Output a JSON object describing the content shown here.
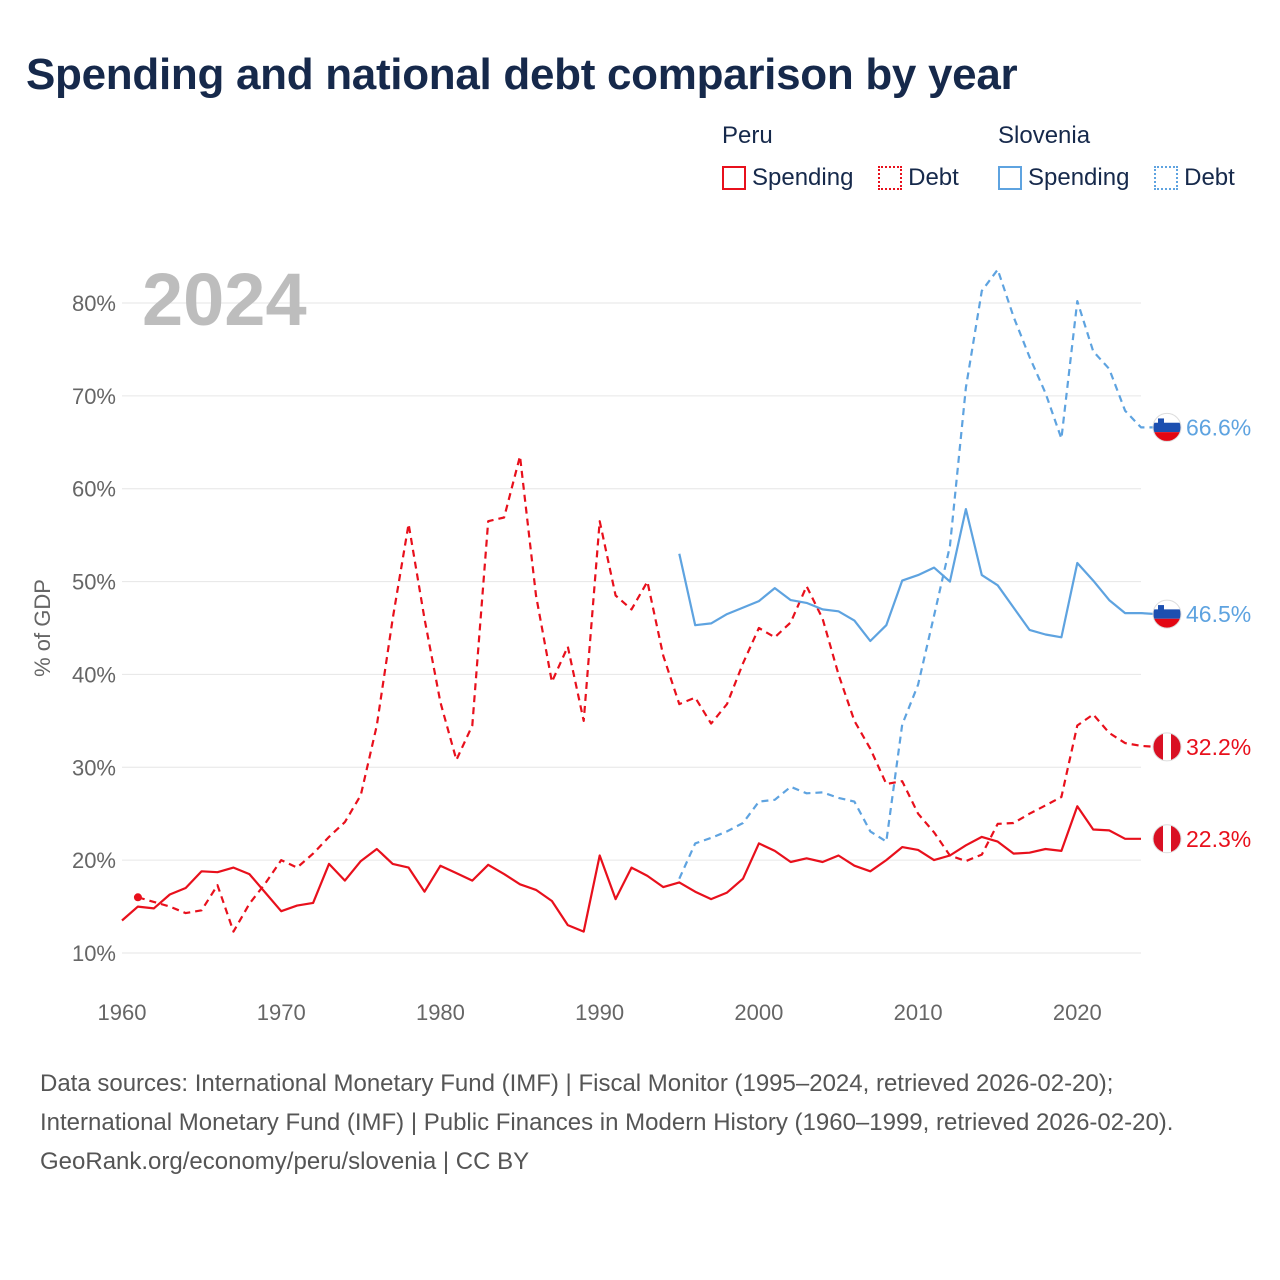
{
  "chart_data": {
    "type": "line",
    "title": "Spending and national debt comparison by year",
    "year_watermark": "2024",
    "ylabel": "% of GDP",
    "xlabel": "",
    "xlim": [
      1960,
      2024
    ],
    "ylim": [
      10,
      85
    ],
    "x_ticks": [
      1960,
      1970,
      1980,
      1990,
      2000,
      2010,
      2020
    ],
    "x_tick_labels": [
      "1960",
      "1970",
      "1980",
      "1990",
      "2000",
      "2010",
      "2020"
    ],
    "y_ticks": [
      10,
      20,
      30,
      40,
      50,
      60,
      70,
      80
    ],
    "y_tick_labels": [
      "10%",
      "20%",
      "30%",
      "40%",
      "50%",
      "60%",
      "70%",
      "80%"
    ],
    "legend": {
      "groups": [
        {
          "name": "Peru",
          "entries": [
            {
              "label": "Spending",
              "style": "solid",
              "color": "#e8101c"
            },
            {
              "label": "Debt",
              "style": "dotted",
              "color": "#e8101c"
            }
          ]
        },
        {
          "name": "Slovenia",
          "entries": [
            {
              "label": "Spending",
              "style": "solid",
              "color": "#5ea3e0"
            },
            {
              "label": "Debt",
              "style": "dotted",
              "color": "#5ea3e0"
            }
          ]
        }
      ]
    },
    "series": [
      {
        "name": "Peru Spending",
        "country": "Peru",
        "metric": "Spending",
        "color": "#e8101c",
        "dash": false,
        "start_year": 1960,
        "values": [
          13.5,
          15.0,
          14.8,
          16.3,
          17.0,
          18.8,
          18.7,
          19.2,
          18.5,
          16.5,
          14.5,
          15.1,
          15.4,
          19.6,
          17.8,
          19.9,
          21.2,
          19.6,
          19.2,
          16.6,
          19.4,
          18.6,
          17.8,
          19.5,
          18.5,
          17.4,
          16.8,
          15.6,
          13.0,
          12.3,
          20.5,
          15.8,
          19.2,
          18.3,
          17.1,
          17.6,
          16.6,
          15.8,
          16.5,
          18.0,
          21.8,
          21.0,
          19.8,
          20.2,
          19.8,
          20.5,
          19.4,
          18.8,
          20.0,
          21.4,
          21.1,
          20.0,
          20.5,
          21.6,
          22.5,
          22.0,
          20.7,
          20.8,
          21.2,
          21.0,
          25.8,
          23.3,
          23.2,
          22.3,
          22.3
        ],
        "end_label": "22.3%"
      },
      {
        "name": "Peru Debt",
        "country": "Peru",
        "metric": "Debt",
        "color": "#e8101c",
        "dash": true,
        "start_year": 1961,
        "values": [
          16.0,
          15.5,
          15.0,
          14.3,
          14.6,
          17.3,
          12.3,
          15.3,
          17.5,
          20.0,
          19.2,
          20.7,
          22.5,
          24.1,
          27.0,
          34.5,
          46.0,
          56.2,
          46.0,
          37.0,
          30.8,
          34.5,
          56.5,
          56.9,
          63.5,
          48.5,
          39.2,
          43.0,
          35.0,
          56.5,
          48.5,
          47.0,
          50.0,
          42.0,
          36.8,
          37.5,
          34.7,
          36.8,
          41.2,
          45.0,
          44.0,
          45.6,
          49.5,
          46.0,
          40.0,
          35.0,
          32.0,
          28.2,
          28.5,
          25.0,
          23.0,
          20.5,
          19.9,
          20.6,
          23.9,
          24.0,
          25.0,
          25.9,
          26.8,
          34.5,
          35.7,
          33.7,
          32.6,
          32.3,
          32.2
        ],
        "end_label": "32.2%"
      },
      {
        "name": "Slovenia Spending",
        "country": "Slovenia",
        "metric": "Spending",
        "color": "#5ea3e0",
        "dash": false,
        "start_year": 1995,
        "values": [
          53.0,
          45.3,
          45.5,
          46.5,
          47.2,
          47.9,
          49.3,
          48.0,
          47.7,
          47.0,
          46.8,
          45.8,
          43.6,
          45.3,
          50.1,
          50.7,
          51.5,
          50.0,
          57.8,
          50.7,
          49.6,
          47.2,
          44.8,
          44.3,
          44.0,
          52.0,
          50.1,
          48.0,
          46.6,
          46.6,
          46.5
        ],
        "end_label": "46.5%"
      },
      {
        "name": "Slovenia Debt",
        "country": "Slovenia",
        "metric": "Debt",
        "color": "#5ea3e0",
        "dash": true,
        "start_year": 1995,
        "values": [
          18.0,
          21.8,
          22.4,
          23.1,
          24.0,
          26.3,
          26.5,
          27.9,
          27.2,
          27.3,
          26.7,
          26.3,
          23.1,
          22.0,
          34.6,
          38.9,
          46.3,
          53.8,
          70.9,
          81.3,
          83.6,
          78.5,
          74.2,
          70.3,
          65.4,
          80.2,
          74.8,
          72.9,
          68.4,
          66.6,
          66.6
        ],
        "end_label": "66.6%"
      }
    ],
    "end_labels": [
      {
        "country": "Slovenia",
        "metric": "Debt",
        "text": "66.6%",
        "color": "#5ea3e0",
        "value": 66.6
      },
      {
        "country": "Slovenia",
        "metric": "Spending",
        "text": "46.5%",
        "color": "#5ea3e0",
        "value": 46.5
      },
      {
        "country": "Peru",
        "metric": "Debt",
        "text": "32.2%",
        "color": "#e8101c",
        "value": 32.2
      },
      {
        "country": "Peru",
        "metric": "Spending",
        "text": "22.3%",
        "color": "#e8101c",
        "value": 22.3
      }
    ]
  },
  "footer": {
    "sources": "Data sources: International Monetary Fund (IMF) | Fiscal Monitor (1995–2024, retrieved 2026-02-20); International Monetary Fund (IMF) | Public Finances in Modern History (1960–1999, retrieved 2026-02-20).",
    "credit": "GeoRank.org/economy/peru/slovenia | CC BY"
  }
}
